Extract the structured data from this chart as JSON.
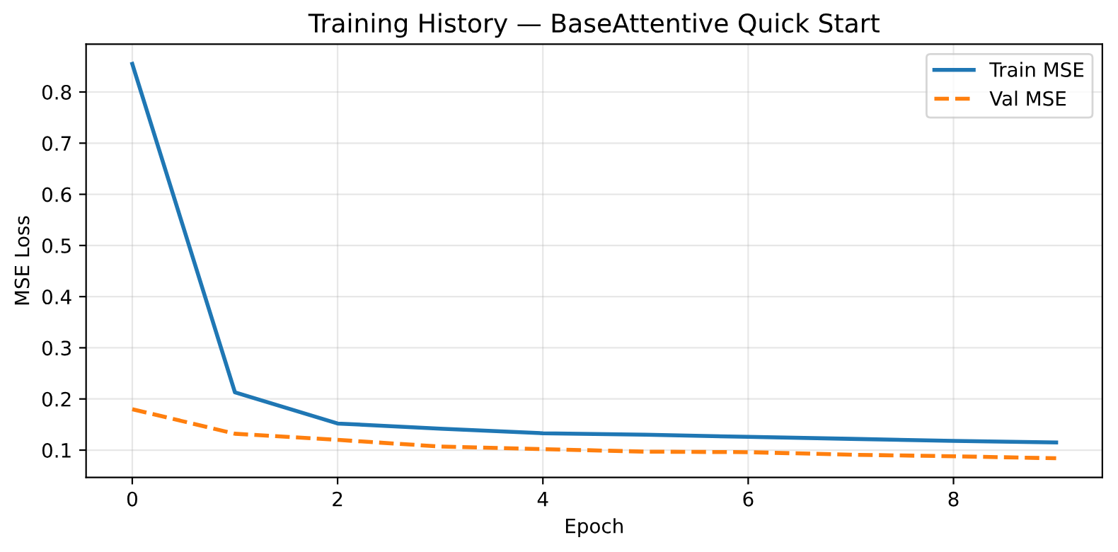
{
  "chart_data": {
    "type": "line",
    "title": "Training History — BaseAttentive Quick Start",
    "xlabel": "Epoch",
    "ylabel": "MSE Loss",
    "x": [
      0,
      1,
      2,
      3,
      4,
      5,
      6,
      7,
      8,
      9
    ],
    "series": [
      {
        "name": "Train MSE",
        "color": "#1f77b4",
        "line_style": "solid",
        "values": [
          0.855,
          0.213,
          0.152,
          0.142,
          0.133,
          0.13,
          0.126,
          0.122,
          0.118,
          0.115
        ]
      },
      {
        "name": "Val MSE",
        "color": "#ff7f0e",
        "line_style": "dashed",
        "values": [
          0.18,
          0.132,
          0.12,
          0.107,
          0.102,
          0.097,
          0.096,
          0.091,
          0.088,
          0.084
        ]
      }
    ],
    "xlim": [
      -0.45,
      9.45
    ],
    "ylim": [
      0.0465,
      0.8935
    ],
    "xticks": [
      0,
      2,
      4,
      6,
      8
    ],
    "yticks": [
      0.1,
      0.2,
      0.3,
      0.4,
      0.5,
      0.6,
      0.7,
      0.8
    ],
    "grid": true,
    "legend": "top right",
    "marker": "none"
  }
}
